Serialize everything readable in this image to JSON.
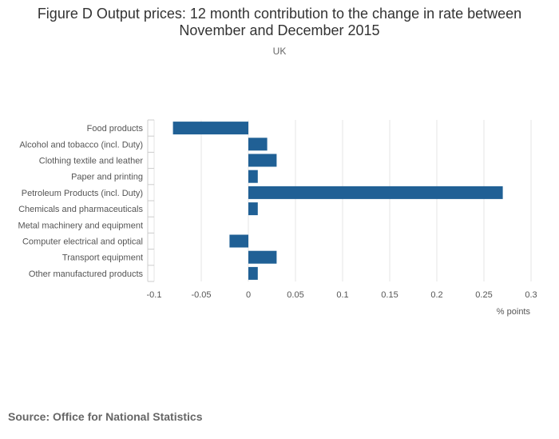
{
  "chart_data": {
    "type": "bar",
    "orientation": "horizontal",
    "title": "Figure D Output prices: 12 month contribution to the change in rate between November and December 2015",
    "subtitle": "UK",
    "xlabel": "% points",
    "ylabel": "",
    "xlim": [
      -0.1,
      0.3
    ],
    "xticks": [
      "-0.1",
      "-0.05",
      "0",
      "0.05",
      "0.1",
      "0.15",
      "0.2",
      "0.25",
      "0.3"
    ],
    "xtick_values": [
      -0.1,
      -0.05,
      0,
      0.05,
      0.1,
      0.15,
      0.2,
      0.25,
      0.3
    ],
    "grid": true,
    "categories": [
      "Food products",
      "Alcohol and tobacco (incl. Duty)",
      "Clothing textile and leather",
      "Paper and printing",
      "Petroleum Products (incl. Duty)",
      "Chemicals and pharmaceuticals",
      "Metal machinery and equipment",
      "Computer electrical and optical",
      "Transport equipment",
      "Other manufactured products"
    ],
    "values": [
      -0.08,
      0.02,
      0.03,
      0.01,
      0.27,
      0.01,
      0.0,
      -0.02,
      0.03,
      0.01
    ],
    "bar_color": "#206095"
  },
  "source": "Source: Office for National Statistics"
}
